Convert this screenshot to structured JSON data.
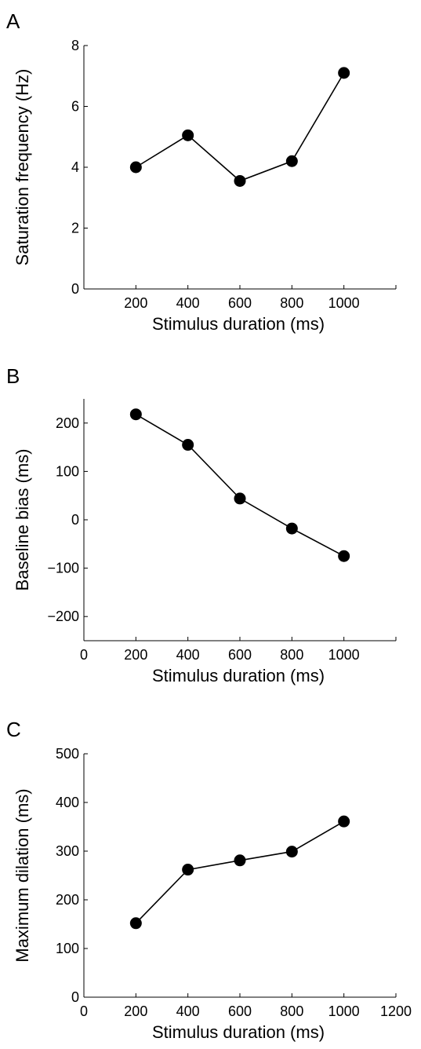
{
  "chart_data": [
    {
      "panel": "A",
      "type": "line",
      "x": [
        200,
        400,
        600,
        800,
        1000
      ],
      "values": [
        4.0,
        5.05,
        3.55,
        4.2,
        7.1
      ],
      "xlabel": "Stimulus duration (ms)",
      "ylabel": "Saturation frequency (Hz)",
      "xlim": [
        0,
        1200
      ],
      "ylim": [
        0,
        8
      ],
      "xticks": [
        200,
        400,
        600,
        800,
        1000
      ],
      "yticks": [
        0,
        2,
        4,
        6,
        8
      ],
      "grid": false,
      "marker": "filled-circle"
    },
    {
      "panel": "B",
      "type": "line",
      "x": [
        200,
        400,
        600,
        800,
        1000
      ],
      "values": [
        218,
        155,
        44,
        -18,
        -75
      ],
      "xlabel": "Stimulus duration (ms)",
      "ylabel": "Baseline bias (ms)",
      "xlim": [
        0,
        1200
      ],
      "ylim": [
        -250,
        250
      ],
      "xticks": [
        0,
        200,
        400,
        600,
        800,
        1000
      ],
      "yticks": [
        -200,
        -100,
        0,
        100,
        200
      ],
      "grid": false,
      "marker": "filled-circle"
    },
    {
      "panel": "C",
      "type": "line",
      "x": [
        200,
        400,
        600,
        800,
        1000
      ],
      "values": [
        152,
        262,
        281,
        299,
        361
      ],
      "xlabel": "Stimulus duration (ms)",
      "ylabel": "Maximum dilation (ms)",
      "xlim": [
        0,
        1200
      ],
      "ylim": [
        0,
        500
      ],
      "xticks": [
        0,
        200,
        400,
        600,
        800,
        1000,
        1200
      ],
      "yticks": [
        0,
        100,
        200,
        300,
        400,
        500
      ],
      "grid": false,
      "marker": "filled-circle"
    }
  ]
}
